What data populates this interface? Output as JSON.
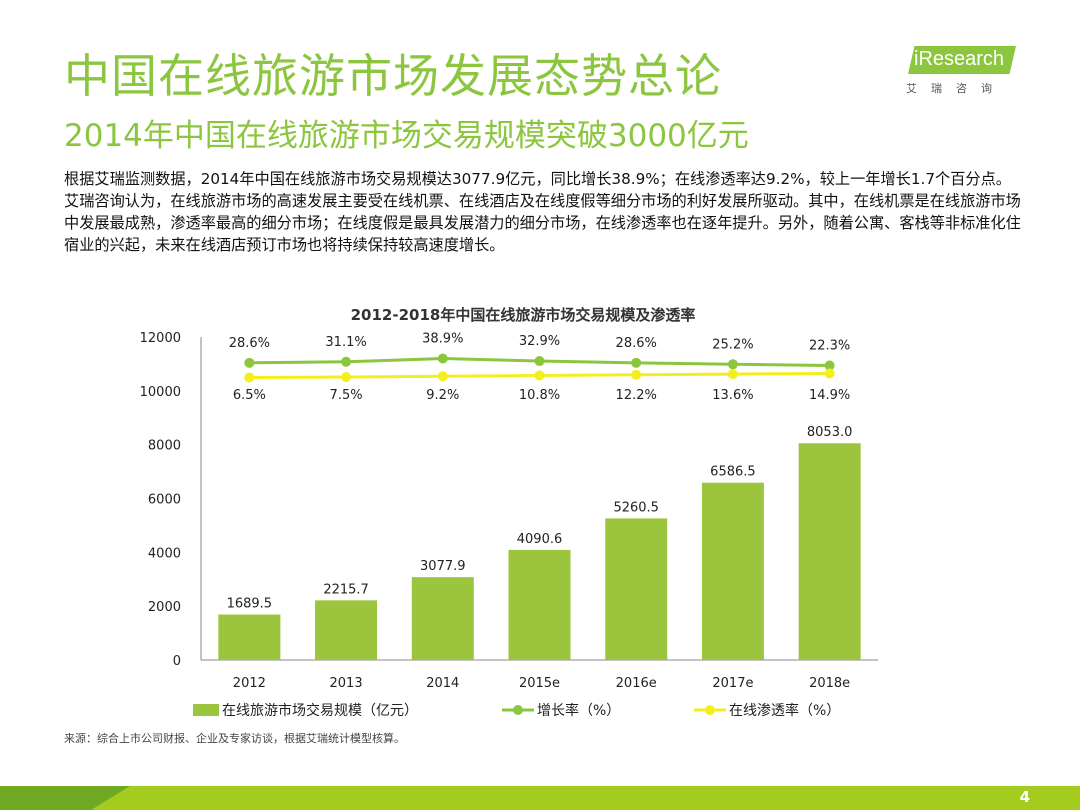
{
  "header": {
    "title": "中国在线旅游市场发展态势总论",
    "subtitle": "2014年中国在线旅游市场交易规模突破3000亿元"
  },
  "logo": {
    "name": "iResearch",
    "sub": "艾瑞咨询"
  },
  "body": {
    "paragraph1": "根据艾瑞监测数据，2014年中国在线旅游市场交易规模达3077.9亿元，同比增长38.9%；在线渗透率达9.2%，较上一年增长1.7个百分点。",
    "paragraph2": "艾瑞咨询认为，在线旅游市场的高速发展主要受在线机票、在线酒店及在线度假等细分市场的利好发展所驱动。其中，在线机票是在线旅游市场中发展最成熟，渗透率最高的细分市场；在线度假是最具发展潜力的细分市场，在线渗透率也在逐年提升。另外，随着公寓、客栈等非标准化住宿业的兴起，未来在线酒店预订市场也将持续保持较高速度增长。"
  },
  "chart_data": {
    "type": "bar",
    "title": "2012-2018年中国在线旅游市场交易规模及渗透率",
    "categories": [
      "2012",
      "2013",
      "2014",
      "2015e",
      "2016e",
      "2017e",
      "2018e"
    ],
    "ylim": [
      0,
      12000
    ],
    "yticks": [
      "0",
      "2000",
      "4000",
      "6000",
      "8000",
      "10000",
      "12000"
    ],
    "series": [
      {
        "name": "在线旅游市场交易规模（亿元）",
        "type": "bar",
        "color": "#9bc53d",
        "values": [
          1689.5,
          2215.7,
          3077.9,
          4090.6,
          5260.5,
          6586.5,
          8053.0
        ],
        "labels": [
          "1689.5",
          "2215.7",
          "3077.9",
          "4090.6",
          "5260.5",
          "6586.5",
          "8053.0"
        ]
      },
      {
        "name": "增长率（%）",
        "type": "line",
        "color": "#8cc63f",
        "values": [
          28.6,
          31.1,
          38.9,
          32.9,
          28.6,
          25.2,
          22.3
        ],
        "labels": [
          "28.6%",
          "31.1%",
          "38.9%",
          "32.9%",
          "28.6%",
          "25.2%",
          "22.3%"
        ]
      },
      {
        "name": "在线渗透率（%）",
        "type": "line",
        "color": "#f5ee1e",
        "values": [
          6.5,
          7.5,
          9.2,
          10.8,
          12.2,
          13.6,
          14.9
        ],
        "labels": [
          "6.5%",
          "7.5%",
          "9.2%",
          "10.8%",
          "12.2%",
          "13.6%",
          "14.9%"
        ]
      }
    ],
    "legend_position": "bottom"
  },
  "source": "来源：综合上市公司财报、企业及专家访谈，根据艾瑞统计模型核算。",
  "page_number": "4"
}
